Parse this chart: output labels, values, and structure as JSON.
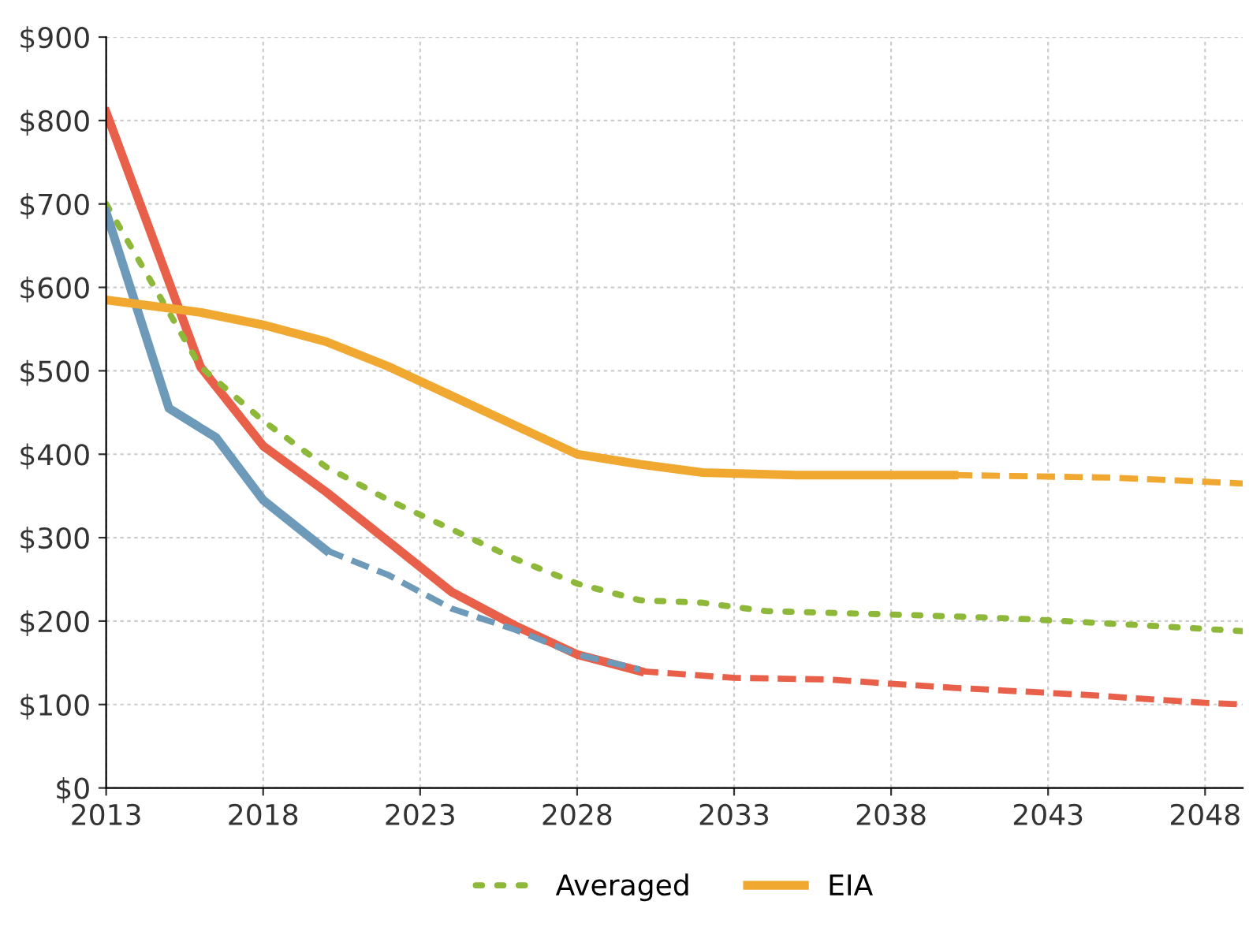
{
  "chart_data": {
    "type": "line",
    "xlim": [
      2013,
      2049.2
    ],
    "xticks": [
      2013,
      2018,
      2023,
      2028,
      2033,
      2038,
      2043,
      2048
    ],
    "ylim": [
      0,
      900
    ],
    "yticks": [
      {
        "value": 0,
        "label": "$0"
      },
      {
        "value": 100,
        "label": "$100"
      },
      {
        "value": 200,
        "label": "$200"
      },
      {
        "value": 300,
        "label": "$300"
      },
      {
        "value": 400,
        "label": "$400"
      },
      {
        "value": 500,
        "label": "$500"
      },
      {
        "value": 600,
        "label": "$600"
      },
      {
        "value": 700,
        "label": "$700"
      },
      {
        "value": 800,
        "label": "$800"
      },
      {
        "value": 900,
        "label": "$900"
      }
    ],
    "grid": true,
    "legend": "bottom",
    "marker": "none",
    "series": [
      {
        "color": "#e8604a",
        "line_style": "solid",
        "x": [
          2013,
          2016,
          2018,
          2020,
          2022,
          2024,
          2026,
          2028,
          2030
        ],
        "values": [
          810,
          505,
          410,
          355,
          295,
          235,
          195,
          160,
          140
        ]
      },
      {
        "color": "#e8604a",
        "line_style": "dashed",
        "x": [
          2030,
          2033,
          2036,
          2040,
          2044,
          2048,
          2049.2
        ],
        "values": [
          140,
          132,
          130,
          120,
          112,
          102,
          100
        ]
      },
      {
        "name": "Averaged",
        "color": "#8db83a",
        "line_style": "dotted",
        "x": [
          2013,
          2016,
          2018,
          2020,
          2022,
          2024,
          2026,
          2028,
          2030,
          2032,
          2034,
          2038,
          2042,
          2046,
          2049.2
        ],
        "values": [
          700,
          505,
          440,
          385,
          345,
          310,
          275,
          245,
          225,
          222,
          212,
          208,
          203,
          195,
          188
        ]
      },
      {
        "color": "#6c9ab8",
        "line_style": "solid",
        "x": [
          2013,
          2015,
          2016.5,
          2018,
          2020
        ],
        "values": [
          690,
          455,
          420,
          345,
          285
        ]
      },
      {
        "color": "#6c9ab8",
        "line_style": "dashed",
        "x": [
          2020,
          2022,
          2024,
          2026,
          2028,
          2030
        ],
        "values": [
          285,
          255,
          215,
          190,
          160,
          142
        ]
      },
      {
        "name": "EIA",
        "color": "#f0a830",
        "line_style": "solid",
        "x": [
          2013,
          2016,
          2018,
          2020,
          2022,
          2024,
          2026,
          2028,
          2030,
          2032,
          2035,
          2040
        ],
        "values": [
          585,
          570,
          555,
          535,
          505,
          470,
          435,
          400,
          388,
          378,
          375,
          375
        ]
      },
      {
        "color": "#f0a830",
        "line_style": "dashed",
        "x": [
          2040,
          2045,
          2049.2
        ],
        "values": [
          375,
          372,
          365
        ]
      }
    ]
  }
}
